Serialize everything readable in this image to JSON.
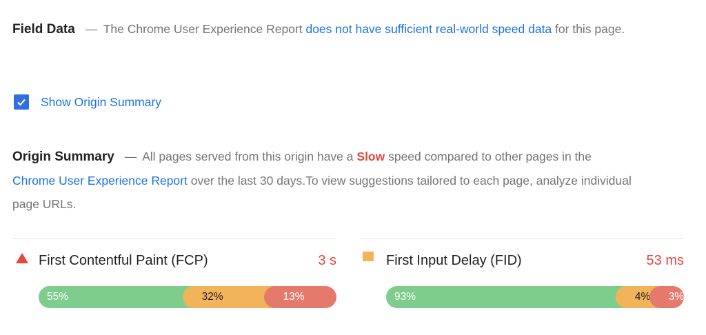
{
  "field_data": {
    "title": "Field Data",
    "dash": "—",
    "text_before": "The Chrome User Experience Report ",
    "link": "does not have sufficient real-world speed data",
    "text_after": " for this page."
  },
  "origin_toggle": {
    "label": "Show Origin Summary",
    "checked": true
  },
  "origin_summary": {
    "title": "Origin Summary",
    "dash": "—",
    "text_1": "All pages served from this origin have a ",
    "speed": "Slow",
    "text_2": " speed compared to other pages in the ",
    "link": "Chrome User Experience Report",
    "text_3": " over the last 30 days.To view suggestions tailored to each page, analyze individual page URLs."
  },
  "metrics": [
    {
      "icon": "triangle-icon",
      "name": "First Contentful Paint (FCP)",
      "value": "3 s",
      "distribution": [
        {
          "label": "55%",
          "percent": 55,
          "category": "fast"
        },
        {
          "label": "32%",
          "percent": 32,
          "category": "average"
        },
        {
          "label": "13%",
          "percent": 13,
          "category": "slow"
        }
      ]
    },
    {
      "icon": "square-icon",
      "name": "First Input Delay (FID)",
      "value": "53 ms",
      "distribution": [
        {
          "label": "93%",
          "percent": 93,
          "category": "fast"
        },
        {
          "label": "4%",
          "percent": 4,
          "category": "average"
        },
        {
          "label": "3%",
          "percent": 3,
          "category": "slow"
        }
      ]
    }
  ],
  "colors": {
    "fast": "#7fcd8c",
    "average": "#f2b45a",
    "slow": "#e57a6c",
    "link": "#1a73e8",
    "slow_text": "#e8453c"
  }
}
